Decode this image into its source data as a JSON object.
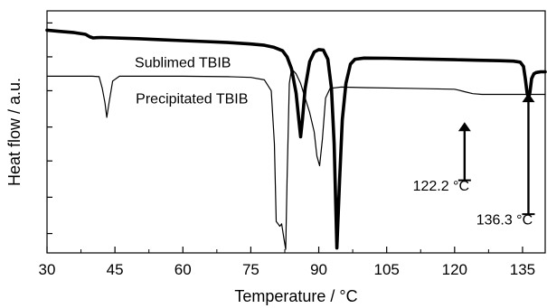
{
  "chart_data": {
    "type": "line",
    "title": "",
    "xlabel": "Temperature / °C",
    "ylabel": "Heat flow / a.u.",
    "xlim": [
      30,
      140
    ],
    "ylim": [
      0,
      100
    ],
    "x_ticks": [
      30,
      45,
      60,
      75,
      90,
      105,
      120,
      135
    ],
    "x_tick_labels": [
      "30",
      "45",
      "60",
      "75",
      "90",
      "105",
      "120",
      "135"
    ],
    "y_tick_labels": [],
    "grid": false,
    "legend": "none",
    "series": [
      {
        "name": "Sublimed TBIB",
        "line": "thick",
        "x": [
          30,
          33,
          36,
          38.5,
          39.5,
          40.2,
          41,
          42,
          45,
          50,
          55,
          60,
          65,
          70,
          75,
          78,
          80,
          82,
          83,
          84,
          85,
          85.6,
          86,
          86.4,
          87,
          88,
          89,
          90,
          91,
          92,
          92.8,
          93.4,
          94,
          94.6,
          95.2,
          96,
          97,
          98,
          100,
          105,
          110,
          115,
          120,
          125,
          130,
          133,
          134.5,
          135.2,
          135.6,
          136,
          136.3,
          136.6,
          137,
          137.5,
          138,
          139,
          140
        ],
        "y": [
          92,
          91.5,
          91,
          90.3,
          89.2,
          88.8,
          88.9,
          89.0,
          88.8,
          88.5,
          88.1,
          87.7,
          87.3,
          86.9,
          86.3,
          85.8,
          85.0,
          83.5,
          81.0,
          76.0,
          66.0,
          55.0,
          48.0,
          55.0,
          68.0,
          79.0,
          83.0,
          84.0,
          83.8,
          80.0,
          68.0,
          45.0,
          2.0,
          30.0,
          55.0,
          70.0,
          78.0,
          80.0,
          80.5,
          80.4,
          80.2,
          80.0,
          79.8,
          79.6,
          79.4,
          79.2,
          78.8,
          77.0,
          72.0,
          66.0,
          64.0,
          66.0,
          72.0,
          74.0,
          74.5,
          74.8,
          74.8
        ]
      },
      {
        "name": "Precipitated TBIB",
        "line": "thin",
        "x": [
          30,
          35,
          40,
          41.5,
          42.2,
          42.8,
          43.2,
          43.7,
          44.5,
          46,
          50,
          60,
          70,
          75,
          78,
          79.5,
          80.2,
          80.6,
          81,
          81.4,
          81.8,
          82.3,
          82.7,
          83,
          83.5,
          84,
          85,
          86,
          87,
          88,
          89,
          89.6,
          90.2,
          90.8,
          91.5,
          92.5,
          95,
          100,
          110,
          115,
          120,
          121,
          122.2,
          124,
          126,
          130,
          135,
          140
        ],
        "y": [
          73,
          73,
          73,
          72.8,
          68,
          62,
          56,
          62,
          71,
          73,
          73,
          73,
          72.8,
          72.5,
          71.5,
          67,
          45,
          13,
          12,
          11,
          12,
          6,
          1.5,
          30,
          70,
          76,
          74,
          70,
          64,
          58,
          50,
          40,
          36,
          47,
          64,
          68,
          68.5,
          68.3,
          68,
          67.8,
          67.6,
          67.2,
          66.6,
          65.8,
          65.5,
          65.5,
          65.5,
          65.5
        ]
      }
    ],
    "annotations": [
      {
        "text": "Sublimed TBIB",
        "series": "Sublimed TBIB",
        "x": 60,
        "y": 79
      },
      {
        "text": "Precipitated TBIB",
        "series": "Precipitated TBIB",
        "x": 62,
        "y": 64
      },
      {
        "text": "122.2 °C",
        "points_to_x": 122.2,
        "arrow_from_y": 30,
        "arrow_to_y": 54,
        "text_x": 117,
        "text_y": 28
      },
      {
        "text": "136.3 °C",
        "points_to_x": 136.3,
        "arrow_from_y": 16,
        "arrow_to_y": 66,
        "text_x": 131,
        "text_y": 14
      }
    ]
  }
}
